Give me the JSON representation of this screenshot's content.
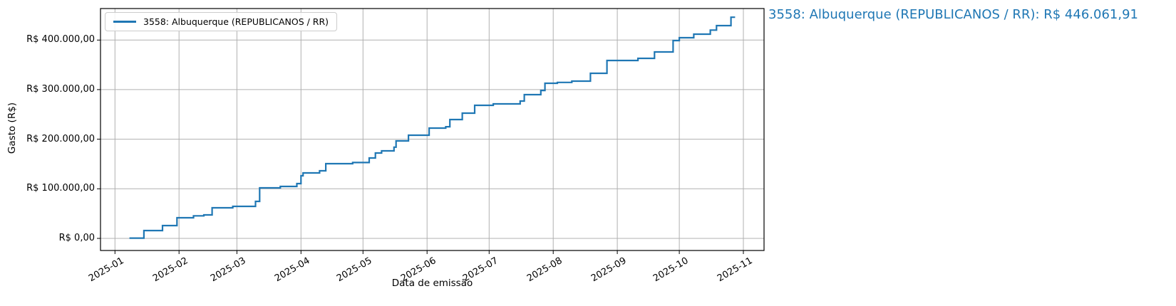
{
  "annotation": {
    "text": "3558: Albuquerque (REPUBLICANOS / RR): R$ 446.061,91",
    "color": "#1f77b4"
  },
  "chart_data": {
    "type": "line",
    "step_interpolation": "post",
    "title": "",
    "xlabel": "Data de emissão",
    "ylabel": "Gasto (R$)",
    "grid": true,
    "legend_position": "upper left",
    "legend_label": "3558: Albuquerque (REPUBLICANOS / RR)",
    "x_range": [
      "2024-12-25",
      "2025-11-11"
    ],
    "y_range": [
      -24400,
      463500
    ],
    "x_ticks": [
      {
        "date": "2025-01-01",
        "label": "2025-01"
      },
      {
        "date": "2025-02-01",
        "label": "2025-02"
      },
      {
        "date": "2025-03-01",
        "label": "2025-03"
      },
      {
        "date": "2025-04-01",
        "label": "2025-04"
      },
      {
        "date": "2025-05-01",
        "label": "2025-05"
      },
      {
        "date": "2025-06-01",
        "label": "2025-06"
      },
      {
        "date": "2025-07-01",
        "label": "2025-07"
      },
      {
        "date": "2025-08-01",
        "label": "2025-08"
      },
      {
        "date": "2025-09-01",
        "label": "2025-09"
      },
      {
        "date": "2025-10-01",
        "label": "2025-10"
      },
      {
        "date": "2025-11-01",
        "label": "2025-11"
      }
    ],
    "y_ticks": [
      {
        "value": 0,
        "label": "R$ 0,00"
      },
      {
        "value": 100000,
        "label": "R$ 100.000,00"
      },
      {
        "value": 200000,
        "label": "R$ 200.000,00"
      },
      {
        "value": 300000,
        "label": "R$ 300.000,00"
      },
      {
        "value": 400000,
        "label": "R$ 400.000,00"
      }
    ],
    "series": [
      {
        "name": "3558: Albuquerque (REPUBLICANOS / RR)",
        "color": "#1f77b4",
        "final_value": 446061.91,
        "points": [
          [
            "2025-01-08",
            635
          ],
          [
            "2025-01-15",
            15800
          ],
          [
            "2025-01-24",
            25800
          ],
          [
            "2025-01-31",
            41600
          ],
          [
            "2025-02-08",
            45500
          ],
          [
            "2025-02-13",
            47400
          ],
          [
            "2025-02-17",
            61700
          ],
          [
            "2025-02-27",
            64600
          ],
          [
            "2025-03-10",
            74600
          ],
          [
            "2025-03-12",
            101900
          ],
          [
            "2025-03-22",
            104800
          ],
          [
            "2025-03-30",
            110500
          ],
          [
            "2025-04-01",
            126300
          ],
          [
            "2025-04-02",
            132000
          ],
          [
            "2025-04-10",
            136300
          ],
          [
            "2025-04-13",
            150700
          ],
          [
            "2025-04-26",
            153000
          ],
          [
            "2025-05-04",
            162200
          ],
          [
            "2025-05-07",
            172200
          ],
          [
            "2025-05-10",
            176500
          ],
          [
            "2025-05-16",
            184000
          ],
          [
            "2025-05-17",
            196600
          ],
          [
            "2025-05-23",
            208000
          ],
          [
            "2025-06-02",
            222400
          ],
          [
            "2025-06-10",
            225200
          ],
          [
            "2025-06-12",
            239600
          ],
          [
            "2025-06-18",
            252500
          ],
          [
            "2025-06-24",
            268300
          ],
          [
            "2025-07-03",
            271200
          ],
          [
            "2025-07-16",
            276900
          ],
          [
            "2025-07-18",
            289800
          ],
          [
            "2025-07-26",
            298400
          ],
          [
            "2025-07-28",
            312800
          ],
          [
            "2025-08-03",
            314500
          ],
          [
            "2025-08-10",
            317100
          ],
          [
            "2025-08-19",
            332900
          ],
          [
            "2025-08-27",
            358700
          ],
          [
            "2025-09-11",
            363000
          ],
          [
            "2025-09-19",
            375900
          ],
          [
            "2025-09-28",
            398900
          ],
          [
            "2025-10-01",
            404600
          ],
          [
            "2025-10-08",
            411800
          ],
          [
            "2025-10-16",
            420000
          ],
          [
            "2025-10-19",
            429000
          ],
          [
            "2025-10-26",
            446061.91
          ],
          [
            "2025-10-28",
            446061.91
          ]
        ]
      }
    ]
  }
}
